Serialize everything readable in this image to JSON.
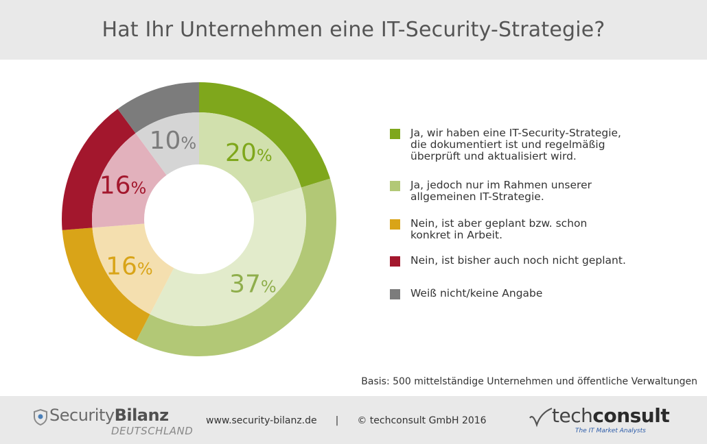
{
  "title": "Hat Ihr Unternehmen eine IT-Security-Strategie?",
  "chart_data": {
    "type": "pie",
    "title": "Hat Ihr Unternehmen eine IT-Security-Strategie?",
    "percent_suffix": "%",
    "categories": [
      "Ja, wir haben eine IT-Security-Strategie,\ndie dokumentiert ist und regelmäßig\nüberprüft und aktualisiert wird.",
      "Ja, jedoch nur im Rahmen unserer\nallgemeinen IT-Strategie.",
      "Nein, ist aber geplant bzw. schon\nkonkret in Arbeit.",
      "Nein, ist bisher auch noch nicht geplant.",
      "Weiß nicht/keine Angabe"
    ],
    "values": [
      20,
      37,
      16,
      16,
      10
    ],
    "colors": [
      "#7fa71c",
      "#b2c876",
      "#d9a418",
      "#a3172d",
      "#7c7c7c"
    ],
    "inner_colors": [
      "#d1e0ad",
      "#e2ebcb",
      "#f4dfaf",
      "#e2b1bc",
      "#d5d5d5"
    ],
    "label_colors": [
      "#7fa71c",
      "#8fae4c",
      "#d9a418",
      "#a3172d",
      "#7c7c7c"
    ],
    "legend_position": "right"
  },
  "basis": "Basis: 500 mittelständige Unternehmen und öffentliche Verwaltungen",
  "footer": {
    "brand_left": {
      "name_light": "Security",
      "name_bold": "Bilanz",
      "sub": "DEUTSCHLAND"
    },
    "website": "www.security-bilanz.de",
    "separator": "|",
    "copyright": "© techconsult GmbH 2016",
    "brand_right": {
      "name_light": "tech",
      "name_bold": "consult",
      "tagline": "The IT Market Analysts"
    }
  }
}
